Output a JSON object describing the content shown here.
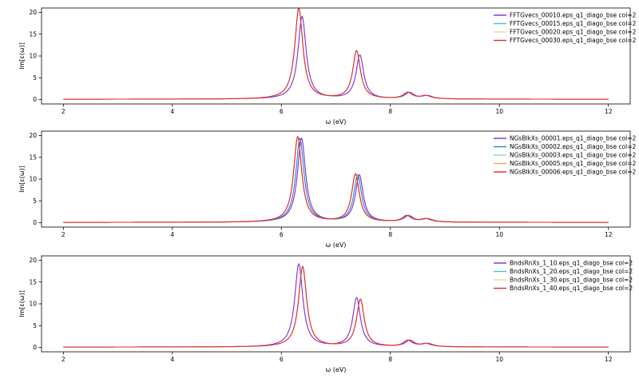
{
  "chart_data": [
    {
      "type": "line",
      "xlabel": "ω (eV)",
      "ylabel": "Im[ε(ω)]",
      "xlim": [
        1.6,
        12.4
      ],
      "ylim": [
        -1.0,
        21.0
      ],
      "xticks": [
        2,
        4,
        6,
        8,
        10,
        12
      ],
      "yticks": [
        0,
        5,
        10,
        15,
        20
      ],
      "grid": false,
      "legend_position": "top-right",
      "peaks": [
        {
          "x": 6.32,
          "y": 20.8
        },
        {
          "x": 7.38,
          "y": 11.0
        },
        {
          "x": 8.32,
          "y": 1.4
        },
        {
          "x": 8.65,
          "y": 0.7
        }
      ],
      "series": [
        {
          "name": "FFTGvecs_00010.eps_q1_diago_bse col=2",
          "color": "#7b2be0",
          "shift": 0.06,
          "scale": 0.91
        },
        {
          "name": "FFTGvecs_00015.eps_q1_diago_bse col=2",
          "color": "#3ec8d6",
          "shift": 0.0,
          "scale": 1.0
        },
        {
          "name": "FFTGvecs_00020.eps_q1_diago_bse col=2",
          "color": "#e8d890",
          "shift": 0.0,
          "scale": 1.0
        },
        {
          "name": "FFTGvecs_00030.eps_q1_diago_bse col=2",
          "color": "#e8282a",
          "shift": 0.0,
          "scale": 1.0
        }
      ]
    },
    {
      "type": "line",
      "xlabel": "ω (eV)",
      "ylabel": "Im[ε(ω)]",
      "xlim": [
        1.6,
        12.4
      ],
      "ylim": [
        -1.0,
        21.0
      ],
      "xticks": [
        2,
        4,
        6,
        8,
        10,
        12
      ],
      "yticks": [
        0,
        5,
        10,
        15,
        20
      ],
      "grid": false,
      "legend_position": "top-right",
      "peaks": [
        {
          "x": 6.3,
          "y": 19.6
        },
        {
          "x": 7.36,
          "y": 11.0
        },
        {
          "x": 8.3,
          "y": 1.4
        },
        {
          "x": 8.65,
          "y": 0.7
        }
      ],
      "series": [
        {
          "name": "NGsBlkXs_00001.eps_q1_diago_bse col=2",
          "color": "#7b2be0",
          "shift": 0.07,
          "scale": 0.98
        },
        {
          "name": "NGsBlkXs_00002.eps_q1_diago_bse col=2",
          "color": "#2a86b8",
          "shift": 0.04,
          "scale": 0.98
        },
        {
          "name": "NGsBlkXs_00003.eps_q1_diago_bse col=2",
          "color": "#7fe0c0",
          "shift": 0.0,
          "scale": 1.0
        },
        {
          "name": "NGsBlkXs_00005.eps_q1_diago_bse col=2",
          "color": "#f0a860",
          "shift": 0.0,
          "scale": 1.0
        },
        {
          "name": "NGsBlkXs_00006.eps_q1_diago_bse col=2",
          "color": "#e8282a",
          "shift": 0.0,
          "scale": 1.0
        }
      ]
    },
    {
      "type": "line",
      "xlabel": "ω (eV)",
      "ylabel": "Im[ε(ω)]",
      "xlim": [
        1.6,
        12.4
      ],
      "ylim": [
        -1.0,
        21.0
      ],
      "xticks": [
        2,
        4,
        6,
        8,
        10,
        12
      ],
      "yticks": [
        0,
        5,
        10,
        15,
        20
      ],
      "grid": false,
      "legend_position": "top-right",
      "peaks": [
        {
          "x": 6.32,
          "y": 19.0
        },
        {
          "x": 7.38,
          "y": 11.2
        },
        {
          "x": 8.32,
          "y": 1.4
        },
        {
          "x": 8.65,
          "y": 0.7
        }
      ],
      "series": [
        {
          "name": "BndsRnXs_1_10.eps_q1_diago_bse col=2",
          "color": "#7b2be0",
          "shift": 0.0,
          "scale": 1.0
        },
        {
          "name": "BndsRnXs_1_20.eps_q1_diago_bse col=2",
          "color": "#3ec8d6",
          "shift": 0.07,
          "scale": 0.97
        },
        {
          "name": "BndsRnXs_1_30.eps_q1_diago_bse col=2",
          "color": "#e8d890",
          "shift": 0.07,
          "scale": 0.97
        },
        {
          "name": "BndsRnXs_1_40.eps_q1_diago_bse col=2",
          "color": "#e8282a",
          "shift": 0.07,
          "scale": 0.97
        }
      ]
    }
  ]
}
